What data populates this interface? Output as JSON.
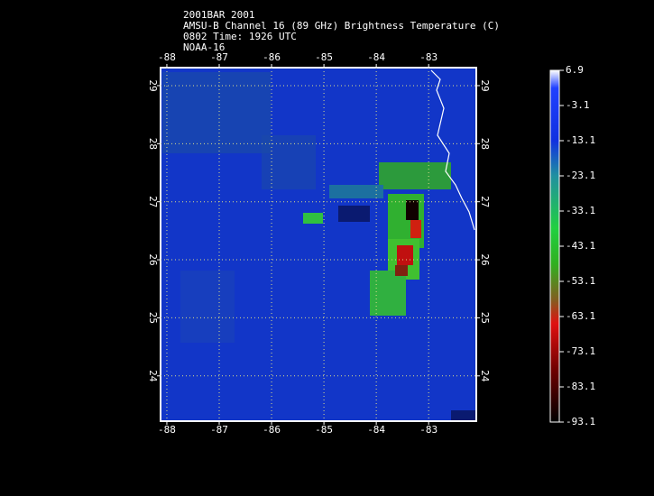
{
  "header": {
    "lines": [
      "2001BAR 2001",
      "AMSU-B Channel 16 (89 GHz) Brightness Temperature (C)",
      "0802 Time: 1926 UTC",
      "NOAA-16"
    ]
  },
  "map": {
    "lonlim": [
      -88.12,
      -82.09
    ],
    "latlim": [
      23.22,
      29.31
    ],
    "lonticks": [
      -88,
      -87,
      -86,
      -85,
      -84,
      -83
    ],
    "latticks": [
      24,
      25,
      26,
      27,
      28,
      29
    ]
  },
  "colorbar": {
    "lim": [
      -93.1,
      6.9
    ],
    "ticks": [
      6.9,
      -3.1,
      -13.1,
      -23.1,
      -33.1,
      -43.1,
      -53.1,
      -63.1,
      -73.1,
      -83.1,
      -93.1
    ]
  }
}
